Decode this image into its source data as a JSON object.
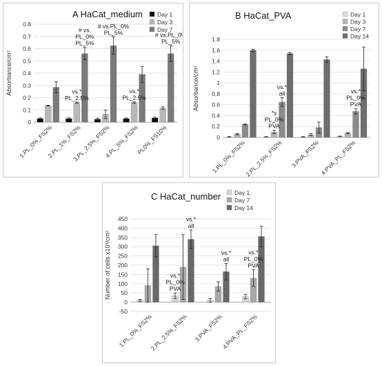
{
  "chart_data": [
    {
      "id": "a",
      "type": "bar",
      "title": "A  HaCat_medium",
      "ylabel": "Absorbance/cm²",
      "ylim": [
        0,
        0.8
      ],
      "yticks": [
        0,
        0.1,
        0.2,
        0.3,
        0.4,
        0.5,
        0.6,
        0.7,
        0.8
      ],
      "ytick_labels": [
        "0",
        "0.1",
        "0.2",
        "0.3",
        "0.4",
        "0.5",
        "0.6",
        "0.7",
        "0.8"
      ],
      "grid": true,
      "legend_position": "top-right",
      "categories": [
        "1.PL_0%_FS2%",
        "2.PL_1%_FS2%",
        "3.PL_2.5%_FS2%",
        "4.PL_5%_FS2%",
        "PL0%_FS10%"
      ],
      "series": [
        {
          "name": "Day 1",
          "color": "#0a0a0a",
          "values": [
            0.03,
            0.03,
            0.025,
            0.03,
            0.035
          ],
          "errors": [
            0.005,
            0.006,
            0.008,
            0.005,
            0.006
          ]
        },
        {
          "name": "Day 3",
          "color": "#b8b8b8",
          "values": [
            0.135,
            0.16,
            0.065,
            0.16,
            0.115
          ],
          "errors": [
            0.003,
            0.004,
            0.035,
            0.006,
            0.01
          ]
        },
        {
          "name": "Day 7",
          "color": "#7a7a7a",
          "values": [
            0.285,
            0.56,
            0.625,
            0.39,
            0.56
          ],
          "errors": [
            0.045,
            0.05,
            0.07,
            0.065,
            0.065
          ]
        }
      ],
      "annotations": [
        {
          "category": 1,
          "series": 1,
          "lines": [
            "vs.*",
            "PL_2.5%"
          ]
        },
        {
          "category": 1,
          "series": 2,
          "lines": [
            "# vs.",
            "PL_0%",
            "PL_5%"
          ]
        },
        {
          "category": 2,
          "series": 2,
          "lines": [
            "# vs.PL_0%",
            "PL_5%"
          ]
        },
        {
          "category": 3,
          "series": 1,
          "lines": [
            "vs.*",
            "PL_2.5%"
          ]
        },
        {
          "category": 4,
          "series": 2,
          "lines": [
            "# vs.PL_0%",
            "PL_5%"
          ]
        }
      ]
    },
    {
      "id": "b",
      "type": "bar",
      "title": "B  HaCat_PVA",
      "ylabel": "Absorbance/cm²",
      "ylim": [
        0,
        1.8
      ],
      "yticks": [
        0,
        0.2,
        0.4,
        0.6,
        0.8,
        1.0,
        1.2,
        1.4,
        1.6,
        1.8
      ],
      "ytick_labels": [
        "0",
        "0.2",
        "0.4",
        "0.6",
        "0.8",
        "1",
        "1.2",
        "1.4",
        "1.6",
        "1.8"
      ],
      "grid": true,
      "legend_position": "top-right",
      "categories": [
        "1.PL_0%_FS2%",
        "2.PL_2.5%_FS2%",
        "3.PVA_FS2%",
        "4.PVA_PL_FS2%"
      ],
      "series": [
        {
          "name": "Day 1",
          "color": "#dcdcdc",
          "values": [
            0.01,
            0.01,
            0.01,
            0.02
          ],
          "errors": [
            0.005,
            0.005,
            0.005,
            0.005
          ]
        },
        {
          "name": "Day 3",
          "color": "#b5b5b5",
          "values": [
            0.06,
            0.1,
            0.05,
            0.08
          ],
          "errors": [
            0.01,
            0.03,
            0.02,
            0.01
          ]
        },
        {
          "name": "Day 7",
          "color": "#8c8c8c",
          "values": [
            0.24,
            0.65,
            0.18,
            0.48
          ],
          "errors": [
            0.01,
            0.08,
            0.1,
            0.05
          ]
        },
        {
          "name": "Day 14",
          "color": "#6e6e6e",
          "values": [
            1.6,
            1.54,
            1.43,
            1.26
          ],
          "errors": [
            0.02,
            0.02,
            0.05,
            0.4
          ]
        }
      ],
      "annotations": [
        {
          "category": 1,
          "series": 2,
          "lines": [
            "vs.*",
            "all"
          ]
        },
        {
          "category": 1,
          "series": 1,
          "lines": [
            "*s",
            "PL_0%",
            "PVA"
          ]
        },
        {
          "category": 3,
          "series": 2,
          "lines": [
            "vs.*",
            "PL_0%",
            "PVA"
          ]
        }
      ]
    },
    {
      "id": "c",
      "type": "bar",
      "title": "C  HaCat_number",
      "ylabel": "Number of cells x10³/cm²",
      "ylim": [
        -50,
        450
      ],
      "yticks": [
        -50,
        0,
        50,
        100,
        150,
        200,
        250,
        300,
        350,
        400,
        450
      ],
      "ytick_labels": [
        "-50",
        "0",
        "50",
        "100",
        "150",
        "200",
        "250",
        "300",
        "350",
        "400",
        "450"
      ],
      "grid": true,
      "legend_position": "top-right",
      "categories": [
        "1.PL_0%_FS2%",
        "2.PL_2.5%_FS2%",
        "3.PVA_FS2%",
        "4.PVA_PL_FS2%"
      ],
      "series": [
        {
          "name": "Day 1",
          "color": "#d6d6d6",
          "values": [
            10,
            35,
            10,
            30
          ],
          "errors": [
            5,
            15,
            10,
            12
          ]
        },
        {
          "name": "Day 7",
          "color": "#a8a8a8",
          "values": [
            90,
            190,
            85,
            130
          ],
          "errors": [
            90,
            175,
            25,
            45
          ]
        },
        {
          "name": "Day 14",
          "color": "#686868",
          "values": [
            305,
            340,
            165,
            355
          ],
          "errors": [
            60,
            50,
            45,
            55
          ]
        }
      ],
      "annotations": [
        {
          "category": 1,
          "series": 2,
          "lines": [
            "vs.*",
            "all"
          ]
        },
        {
          "category": 1,
          "series": 0,
          "lines": [
            "vs.*",
            "PL_0%",
            "PVA"
          ]
        },
        {
          "category": 2,
          "series": 2,
          "lines": [
            "vs.*",
            "all"
          ]
        },
        {
          "category": 3,
          "series": 1,
          "lines": [
            "vs.*",
            "PL_0%",
            "PVA"
          ]
        }
      ]
    }
  ]
}
